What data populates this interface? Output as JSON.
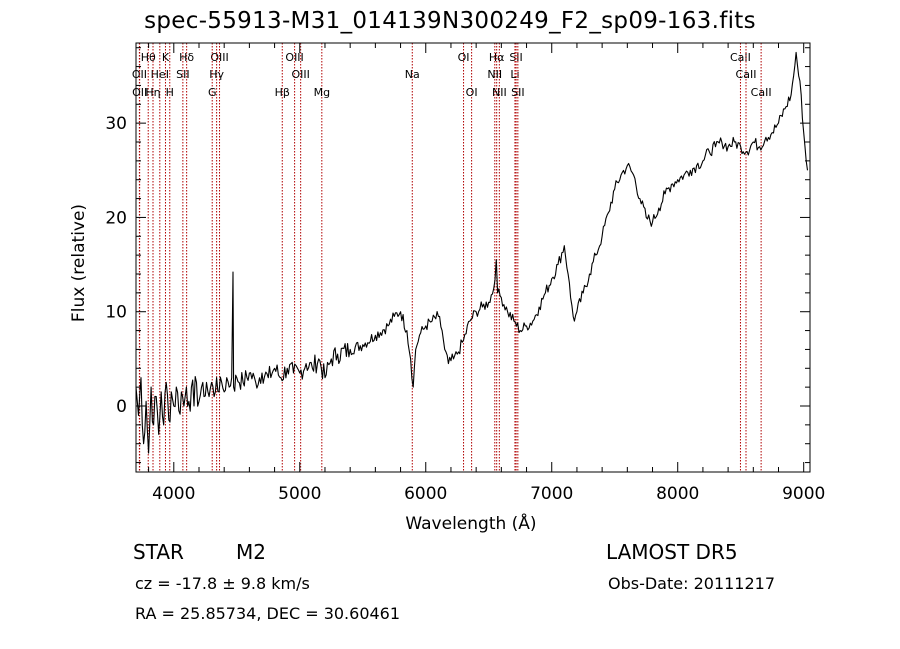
{
  "title": "spec-55913-M31_014139N300249_F2_sp09-163.fits",
  "info": {
    "class": "STAR",
    "subclass": "M2",
    "survey": "LAMOST  DR5",
    "cz": "cz = -17.8 ± 9.8 km/s",
    "obs_date": "Obs-Date: 20111217",
    "radec": "RA =  25.85734, DEC =  30.60461"
  },
  "colors": {
    "spectrum": "#000000",
    "line_marker": "#b00000",
    "axis": "#000000"
  },
  "chart_data": {
    "type": "line",
    "xlabel": "Wavelength (Å)",
    "ylabel": "Flux (relative)",
    "xlim": [
      3700,
      9050
    ],
    "ylim": [
      -7,
      38.5
    ],
    "x_ticks": [
      4000,
      5000,
      6000,
      7000,
      8000,
      9000
    ],
    "y_ticks": [
      0,
      10,
      20,
      30
    ],
    "series": [
      {
        "points": [
          [
            3700,
            2
          ],
          [
            3720,
            -1
          ],
          [
            3740,
            3
          ],
          [
            3760,
            -4
          ],
          [
            3780,
            0.5
          ],
          [
            3800,
            -5
          ],
          [
            3820,
            2
          ],
          [
            3840,
            -2
          ],
          [
            3860,
            1
          ],
          [
            3880,
            -3
          ],
          [
            3900,
            1.5
          ],
          [
            3920,
            -2
          ],
          [
            3940,
            2.5
          ],
          [
            3960,
            -1.5
          ],
          [
            3980,
            1.5
          ],
          [
            4000,
            0
          ],
          [
            4020,
            2
          ],
          [
            4040,
            -0.5
          ],
          [
            4060,
            1.5
          ],
          [
            4080,
            0
          ],
          [
            4100,
            2
          ],
          [
            4120,
            0.5
          ],
          [
            4140,
            2
          ],
          [
            4160,
            0
          ],
          [
            4180,
            2.5
          ],
          [
            4200,
            0.5
          ],
          [
            4220,
            2
          ],
          [
            4240,
            1
          ],
          [
            4260,
            2.5
          ],
          [
            4280,
            1
          ],
          [
            4300,
            2.5
          ],
          [
            4320,
            1
          ],
          [
            4340,
            3
          ],
          [
            4360,
            1.5
          ],
          [
            4380,
            2.5
          ],
          [
            4400,
            1.5
          ],
          [
            4420,
            3
          ],
          [
            4440,
            2
          ],
          [
            4460,
            3
          ],
          [
            4470,
            14.2
          ],
          [
            4475,
            2
          ],
          [
            4500,
            3
          ],
          [
            4550,
            2.5
          ],
          [
            4600,
            3.5
          ],
          [
            4650,
            2.5
          ],
          [
            4700,
            3.5
          ],
          [
            4750,
            3
          ],
          [
            4800,
            4
          ],
          [
            4850,
            3
          ],
          [
            4900,
            4
          ],
          [
            4950,
            3.5
          ],
          [
            5000,
            3.5
          ],
          [
            5050,
            4.5
          ],
          [
            5100,
            4
          ],
          [
            5150,
            5
          ],
          [
            5200,
            3
          ],
          [
            5250,
            5
          ],
          [
            5300,
            5.5
          ],
          [
            5400,
            6
          ],
          [
            5500,
            6.5
          ],
          [
            5600,
            7.5
          ],
          [
            5700,
            8.5
          ],
          [
            5750,
            9.5
          ],
          [
            5800,
            10
          ],
          [
            5850,
            8
          ],
          [
            5880,
            5
          ],
          [
            5900,
            2
          ],
          [
            5920,
            6
          ],
          [
            5950,
            7.5
          ],
          [
            6000,
            8.5
          ],
          [
            6050,
            9
          ],
          [
            6100,
            9.5
          ],
          [
            6130,
            8
          ],
          [
            6150,
            6
          ],
          [
            6180,
            4.5
          ],
          [
            6220,
            5
          ],
          [
            6250,
            5.5
          ],
          [
            6300,
            7
          ],
          [
            6350,
            9
          ],
          [
            6400,
            10
          ],
          [
            6450,
            10.5
          ],
          [
            6500,
            11
          ],
          [
            6540,
            12.5
          ],
          [
            6560,
            15.5
          ],
          [
            6570,
            12
          ],
          [
            6600,
            11.5
          ],
          [
            6650,
            10
          ],
          [
            6700,
            9
          ],
          [
            6750,
            8
          ],
          [
            6800,
            8.5
          ],
          [
            6850,
            9
          ],
          [
            6900,
            10.5
          ],
          [
            6950,
            12
          ],
          [
            7000,
            13.5
          ],
          [
            7050,
            15
          ],
          [
            7100,
            17
          ],
          [
            7130,
            14
          ],
          [
            7150,
            11.5
          ],
          [
            7180,
            9
          ],
          [
            7200,
            10
          ],
          [
            7250,
            12
          ],
          [
            7300,
            14
          ],
          [
            7350,
            16
          ],
          [
            7400,
            18
          ],
          [
            7450,
            20.5
          ],
          [
            7500,
            23
          ],
          [
            7550,
            24.5
          ],
          [
            7600,
            25.5
          ],
          [
            7650,
            24.5
          ],
          [
            7700,
            22
          ],
          [
            7750,
            20
          ],
          [
            7800,
            19.5
          ],
          [
            7850,
            21
          ],
          [
            7900,
            22.5
          ],
          [
            7950,
            23.5
          ],
          [
            8000,
            24
          ],
          [
            8050,
            24.5
          ],
          [
            8100,
            25
          ],
          [
            8150,
            25.5
          ],
          [
            8200,
            26
          ],
          [
            8250,
            27
          ],
          [
            8300,
            27.5
          ],
          [
            8350,
            28
          ],
          [
            8400,
            27.5
          ],
          [
            8450,
            28
          ],
          [
            8500,
            27.5
          ],
          [
            8550,
            27
          ],
          [
            8600,
            28
          ],
          [
            8650,
            27.5
          ],
          [
            8700,
            28.5
          ],
          [
            8750,
            29
          ],
          [
            8800,
            30
          ],
          [
            8850,
            31.5
          ],
          [
            8900,
            33
          ],
          [
            8920,
            35
          ],
          [
            8940,
            37.5
          ],
          [
            8960,
            35
          ],
          [
            8980,
            33
          ],
          [
            9000,
            29
          ],
          [
            9020,
            26
          ],
          [
            9030,
            25
          ]
        ]
      }
    ],
    "line_markers": [
      {
        "label": "Hθ",
        "x": 3797,
        "row": 0
      },
      {
        "label": "K",
        "x": 3934,
        "row": 0
      },
      {
        "label": "Hδ",
        "x": 4102,
        "row": 0
      },
      {
        "label": "OIII",
        "x": 4363,
        "row": 0
      },
      {
        "label": "OIII",
        "x": 4959,
        "row": 0
      },
      {
        "label": "OI",
        "x": 6300,
        "row": 0
      },
      {
        "label": "Hα",
        "x": 6563,
        "row": 0
      },
      {
        "label": "SII",
        "x": 6717,
        "row": 0
      },
      {
        "label": "CaII",
        "x": 8498,
        "row": 0
      },
      {
        "label": "OII",
        "x": 3727,
        "row": 1
      },
      {
        "label": "HeI",
        "x": 3889,
        "row": 1
      },
      {
        "label": "SII",
        "x": 4072,
        "row": 1
      },
      {
        "label": "Hγ",
        "x": 4340,
        "row": 1
      },
      {
        "label": "OIII",
        "x": 5007,
        "row": 1
      },
      {
        "label": "Na",
        "x": 5893,
        "row": 1
      },
      {
        "label": "NII",
        "x": 6548,
        "row": 1
      },
      {
        "label": "Li",
        "x": 6708,
        "row": 1
      },
      {
        "label": "CaII",
        "x": 8542,
        "row": 1
      },
      {
        "label": "OII",
        "x": 3729,
        "row": 2
      },
      {
        "label": "Hη",
        "x": 3835,
        "row": 2
      },
      {
        "label": "H",
        "x": 3968,
        "row": 2
      },
      {
        "label": "G",
        "x": 4305,
        "row": 2
      },
      {
        "label": "Hβ",
        "x": 4861,
        "row": 2
      },
      {
        "label": "Mg",
        "x": 5175,
        "row": 2
      },
      {
        "label": "OI",
        "x": 6364,
        "row": 2
      },
      {
        "label": "NII",
        "x": 6584,
        "row": 2
      },
      {
        "label": "SII",
        "x": 6731,
        "row": 2
      },
      {
        "label": "CaII",
        "x": 8662,
        "row": 2
      }
    ]
  }
}
